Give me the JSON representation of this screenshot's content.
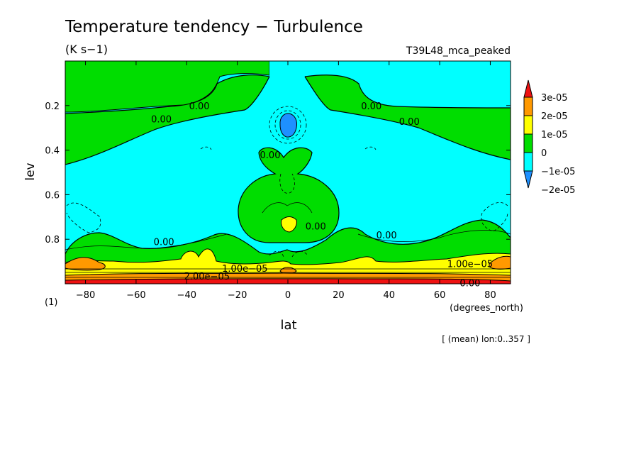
{
  "chart_data": {
    "type": "heatmap",
    "title": "Temperature tendency − Turbulence",
    "units": "(K s−1)",
    "run_label": "T39L48_mca_peaked",
    "xlabel": "lat",
    "x_units": "(degrees_north)",
    "ylabel": "lev",
    "y_units": "(1)",
    "footnote": "[ (mean) lon:0..357 ]",
    "xlim": [
      -88,
      88
    ],
    "ylim": [
      1.0,
      0.0
    ],
    "y_inverted": true,
    "x_ticks": [
      -80,
      -60,
      -40,
      -20,
      0,
      20,
      40,
      60,
      80
    ],
    "y_ticks": [
      0.2,
      0.4,
      0.6,
      0.8
    ],
    "colorbar": {
      "labels": [
        "3e-05",
        "2e-05",
        "1e-05",
        "0",
        "−1e-05",
        "−2e-05"
      ],
      "levels": [
        -2e-05,
        -1e-05,
        0,
        1e-05,
        2e-05,
        3e-05
      ],
      "colors": [
        "#1e90ff",
        "#00ffff",
        "#00dd00",
        "#ffff00",
        "#ff9900",
        "#ee1111"
      ],
      "extend": "both"
    },
    "contour_labels": [
      {
        "text": "0.00",
        "lat": -35,
        "lev": 0.2
      },
      {
        "text": "0.00",
        "lat": -50,
        "lev": 0.26
      },
      {
        "text": "0.00",
        "lat": 33,
        "lev": 0.2
      },
      {
        "text": "0.00",
        "lat": 48,
        "lev": 0.27
      },
      {
        "text": "0.00",
        "lat": -7,
        "lev": 0.42
      },
      {
        "text": "0.00",
        "lat": 11,
        "lev": 0.74
      },
      {
        "text": "0.00",
        "lat": -49,
        "lev": 0.81
      },
      {
        "text": "0.00",
        "lat": 39,
        "lev": 0.78
      },
      {
        "text": "1.00e−05",
        "lat": -17,
        "lev": 0.93
      },
      {
        "text": "1.00e−05",
        "lat": 72,
        "lev": 0.91
      },
      {
        "text": "2.00e−05",
        "lat": -32,
        "lev": 0.965
      },
      {
        "text": "0.00",
        "lat": 72,
        "lev": 0.995
      }
    ]
  }
}
